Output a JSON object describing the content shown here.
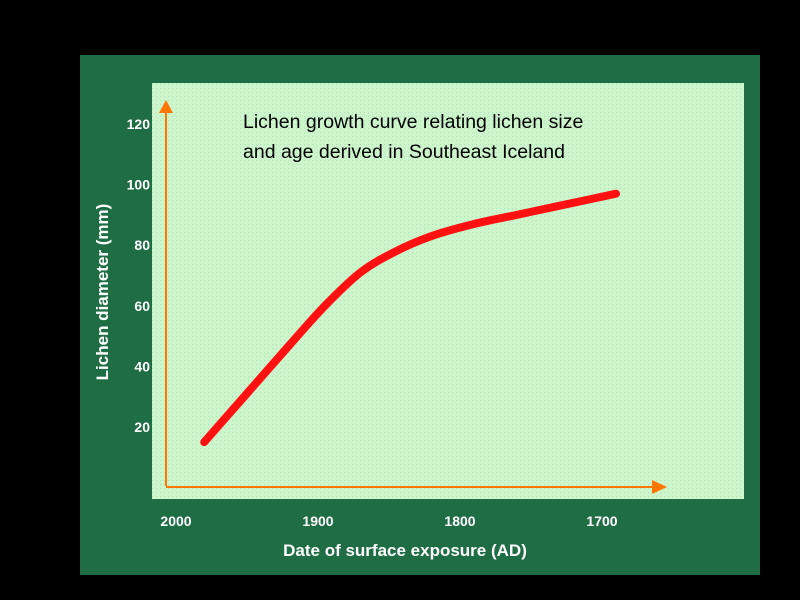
{
  "chart_data": {
    "type": "line",
    "title_lines": [
      "Lichen growth curve relating lichen size",
      "and age derived in Southeast Iceland"
    ],
    "xlabel": "Date of surface exposure (AD)",
    "ylabel": "Lichen diameter (mm)",
    "x_ticks": [
      2000,
      1900,
      1800,
      1700
    ],
    "y_ticks": [
      20,
      40,
      60,
      80,
      100,
      120
    ],
    "x_reversed": true,
    "xlim": [
      2015,
      1650
    ],
    "ylim": [
      0,
      125
    ],
    "grid": false,
    "series": [
      {
        "x": [
          1990,
          1960,
          1930,
          1905,
          1880,
          1855,
          1830,
          1800,
          1770,
          1740,
          1700
        ],
        "y": [
          15,
          31,
          47,
          60,
          71,
          78,
          83,
          87,
          90,
          93,
          97
        ]
      }
    ]
  },
  "colors": {
    "background": "#000000",
    "frame": "#1f6d44",
    "plot_area": "#ccf5cc",
    "axis": "#ff7700",
    "curve": "#ff1111",
    "tick_text": "#ffffff"
  }
}
